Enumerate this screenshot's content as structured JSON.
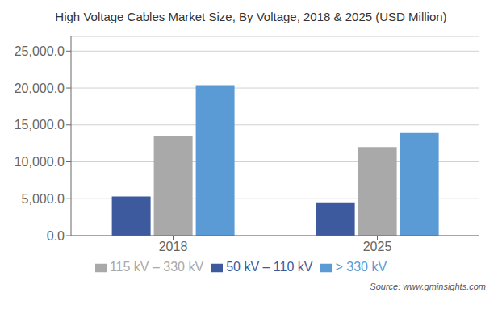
{
  "chart_data": {
    "type": "bar",
    "title": "High Voltage Cables Market Size, By Voltage, 2018 & 2025 (USD Million)",
    "categories": [
      "2018",
      "2025"
    ],
    "series": [
      {
        "name": "50 kV – 110 kV",
        "color": "#3d5a9e",
        "values": [
          5300,
          4500
        ]
      },
      {
        "name": "115 kV – 330 kV",
        "color": "#a9a9a9",
        "values": [
          13500,
          12000
        ]
      },
      {
        "name": "> 330 kV",
        "color": "#5b9bd5",
        "values": [
          20400,
          13900
        ]
      }
    ],
    "ylim": [
      0,
      27000
    ],
    "yticks": [
      {
        "value": 0,
        "label": "0.0"
      },
      {
        "value": 5000,
        "label": "5,000.0"
      },
      {
        "value": 10000,
        "label": "10,000.0"
      },
      {
        "value": 15000,
        "label": "15,000.0"
      },
      {
        "value": 20000,
        "label": "20,000.0"
      },
      {
        "value": 25000,
        "label": "25,000.0"
      }
    ],
    "grid": true,
    "legend": "bottom",
    "annotations": [
      "Source: www.gminsights.com"
    ]
  }
}
